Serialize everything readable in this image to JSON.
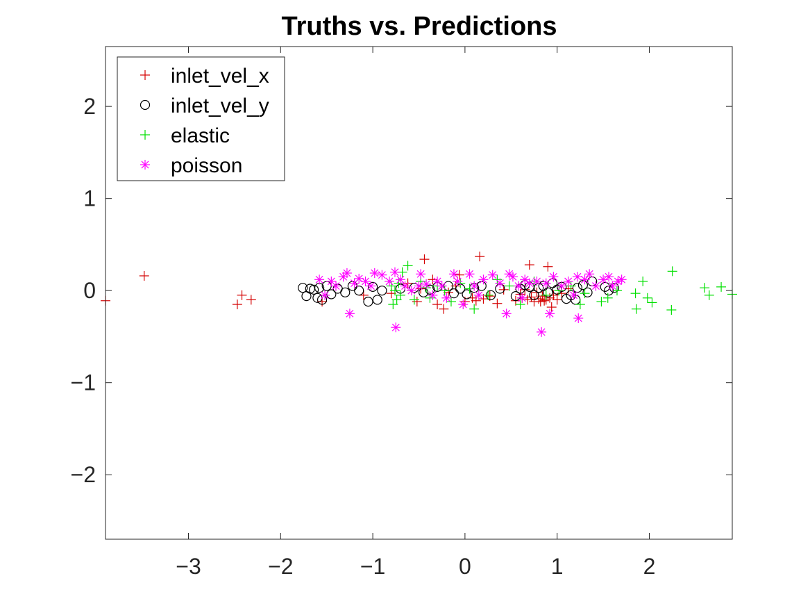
{
  "chart_data": {
    "type": "scatter",
    "title": "Truths vs. Predictions",
    "xlabel": "",
    "ylabel": "",
    "xlim": [
      -3.9,
      2.9
    ],
    "ylim": [
      -2.7,
      2.65
    ],
    "xticks": [
      -3,
      -2,
      -1,
      0,
      1,
      2
    ],
    "yticks": [
      -2,
      -1,
      0,
      1,
      2
    ],
    "grid": false,
    "legend_position": "top-left",
    "series": [
      {
        "name": "inlet_vel_x",
        "marker": "plus",
        "color": "#d40000",
        "points": [
          [
            -3.9,
            -0.11
          ],
          [
            -3.48,
            0.16
          ],
          [
            -2.47,
            -0.15
          ],
          [
            -2.42,
            -0.05
          ],
          [
            -2.32,
            -0.1
          ],
          [
            -1.55,
            -0.12
          ],
          [
            -1.1,
            -0.05
          ],
          [
            -0.8,
            -0.03
          ],
          [
            -0.62,
            0.08
          ],
          [
            -0.52,
            -0.12
          ],
          [
            -0.48,
            0.02
          ],
          [
            -0.44,
            0.34
          ],
          [
            -0.35,
            0.12
          ],
          [
            -0.3,
            -0.15
          ],
          [
            -0.23,
            -0.2
          ],
          [
            -0.18,
            -0.02
          ],
          [
            -0.1,
            0.05
          ],
          [
            -0.06,
            0.17
          ],
          [
            0.0,
            -0.12
          ],
          [
            0.08,
            -0.08
          ],
          [
            0.12,
            -0.11
          ],
          [
            0.16,
            0.37
          ],
          [
            0.2,
            -0.09
          ],
          [
            0.27,
            -0.06
          ],
          [
            0.35,
            -0.14
          ],
          [
            0.42,
            0.01
          ],
          [
            0.55,
            -0.11
          ],
          [
            0.6,
            -0.04
          ],
          [
            0.62,
            -0.08
          ],
          [
            0.65,
            0.01
          ],
          [
            0.68,
            -0.1
          ],
          [
            0.7,
            0.28
          ],
          [
            0.72,
            -0.07
          ],
          [
            0.75,
            -0.12
          ],
          [
            0.78,
            -0.02
          ],
          [
            0.8,
            -0.09
          ],
          [
            0.82,
            -0.12
          ],
          [
            0.84,
            -0.06
          ],
          [
            0.86,
            -0.11
          ],
          [
            0.88,
            -0.1
          ],
          [
            0.9,
            0.26
          ],
          [
            0.92,
            -0.08
          ],
          [
            0.94,
            -0.18
          ],
          [
            0.96,
            -0.05
          ],
          [
            1.0,
            -0.1
          ],
          [
            1.05,
            -0.03
          ],
          [
            1.12,
            0.02
          ]
        ]
      },
      {
        "name": "inlet_vel_y",
        "marker": "circle",
        "color": "#000000",
        "points": [
          [
            -1.76,
            0.03
          ],
          [
            -1.72,
            -0.06
          ],
          [
            -1.68,
            0.02
          ],
          [
            -1.64,
            0.01
          ],
          [
            -1.6,
            -0.08
          ],
          [
            -1.58,
            0.03
          ],
          [
            -1.55,
            -0.1
          ],
          [
            -1.5,
            0.05
          ],
          [
            -1.45,
            -0.04
          ],
          [
            -1.38,
            0.02
          ],
          [
            -1.3,
            -0.02
          ],
          [
            -1.22,
            0.05
          ],
          [
            -1.15,
            0.0
          ],
          [
            -1.05,
            -0.12
          ],
          [
            -1.0,
            0.04
          ],
          [
            -0.95,
            -0.1
          ],
          [
            -0.9,
            0.0
          ],
          [
            -0.7,
            0.02
          ],
          [
            -0.55,
            0.03
          ],
          [
            -0.45,
            -0.02
          ],
          [
            -0.38,
            0.01
          ],
          [
            -0.3,
            0.04
          ],
          [
            -0.18,
            0.05
          ],
          [
            -0.12,
            -0.03
          ],
          [
            -0.05,
            0.02
          ],
          [
            0.02,
            -0.04
          ],
          [
            0.1,
            0.03
          ],
          [
            0.18,
            0.05
          ],
          [
            0.28,
            -0.05
          ],
          [
            0.38,
            0.02
          ],
          [
            0.55,
            -0.06
          ],
          [
            0.6,
            0.02
          ],
          [
            0.65,
            0.06
          ],
          [
            0.7,
            0.04
          ],
          [
            0.75,
            -0.05
          ],
          [
            0.8,
            0.03
          ],
          [
            0.85,
            0.05
          ],
          [
            0.9,
            -0.02
          ],
          [
            0.95,
            0.08
          ],
          [
            1.0,
            0.01
          ],
          [
            1.05,
            0.04
          ],
          [
            1.1,
            -0.09
          ],
          [
            1.15,
            -0.05
          ],
          [
            1.2,
            -0.1
          ],
          [
            1.22,
            0.03
          ],
          [
            1.28,
            0.06
          ],
          [
            1.33,
            -0.02
          ],
          [
            1.38,
            0.1
          ],
          [
            1.52,
            0.04
          ],
          [
            1.56,
            0.0
          ],
          [
            1.62,
            0.03
          ]
        ]
      },
      {
        "name": "elastic",
        "marker": "plus",
        "color": "#00e000",
        "points": [
          [
            -0.8,
            0.05
          ],
          [
            -0.78,
            -0.15
          ],
          [
            -0.76,
            0.0
          ],
          [
            -0.74,
            -0.1
          ],
          [
            -0.72,
            0.08
          ],
          [
            -0.7,
            -0.05
          ],
          [
            -0.68,
            0.2
          ],
          [
            -0.62,
            0.27
          ],
          [
            -0.55,
            -0.1
          ],
          [
            -0.48,
            0.1
          ],
          [
            -0.42,
            0.03
          ],
          [
            -0.38,
            -0.08
          ],
          [
            -0.3,
            0.05
          ],
          [
            -0.22,
            0.0
          ],
          [
            -0.15,
            -0.12
          ],
          [
            -0.05,
            0.08
          ],
          [
            0.05,
            0.02
          ],
          [
            0.1,
            -0.2
          ],
          [
            0.25,
            -0.05
          ],
          [
            0.35,
            0.12
          ],
          [
            0.48,
            0.05
          ],
          [
            0.6,
            -0.15
          ],
          [
            0.75,
            0.1
          ],
          [
            0.88,
            -0.05
          ],
          [
            1.02,
            0.0
          ],
          [
            1.15,
            0.05
          ],
          [
            1.25,
            -0.15
          ],
          [
            1.3,
            -0.03
          ],
          [
            1.48,
            -0.12
          ],
          [
            1.55,
            -0.08
          ],
          [
            1.65,
            0.0
          ],
          [
            1.85,
            -0.03
          ],
          [
            1.86,
            -0.2
          ],
          [
            1.93,
            0.1
          ],
          [
            1.98,
            -0.08
          ],
          [
            2.03,
            -0.13
          ],
          [
            2.24,
            -0.21
          ],
          [
            2.25,
            0.21
          ],
          [
            2.6,
            0.03
          ],
          [
            2.65,
            -0.05
          ],
          [
            2.78,
            0.04
          ],
          [
            2.9,
            -0.04
          ]
        ]
      },
      {
        "name": "poisson",
        "marker": "asterisk",
        "color": "#ff00ff",
        "points": [
          [
            -1.58,
            0.12
          ],
          [
            -1.52,
            -0.05
          ],
          [
            -1.45,
            0.1
          ],
          [
            -1.4,
            0.05
          ],
          [
            -1.32,
            0.15
          ],
          [
            -1.28,
            0.19
          ],
          [
            -1.25,
            -0.25
          ],
          [
            -1.2,
            0.08
          ],
          [
            -1.15,
            0.13
          ],
          [
            -1.08,
            0.1
          ],
          [
            -1.02,
            0.05
          ],
          [
            -0.98,
            0.19
          ],
          [
            -0.9,
            0.17
          ],
          [
            -0.82,
            0.1
          ],
          [
            -0.76,
            0.2
          ],
          [
            -0.75,
            -0.4
          ],
          [
            -0.7,
            0.12
          ],
          [
            -0.65,
            0.05
          ],
          [
            -0.58,
            0.0
          ],
          [
            -0.5,
            0.05
          ],
          [
            -0.48,
            0.18
          ],
          [
            -0.42,
            0.07
          ],
          [
            -0.35,
            -0.05
          ],
          [
            -0.3,
            0.1
          ],
          [
            -0.25,
            0.05
          ],
          [
            -0.2,
            -0.08
          ],
          [
            -0.12,
            0.18
          ],
          [
            -0.08,
            0.1
          ],
          [
            -0.02,
            -0.15
          ],
          [
            0.05,
            0.18
          ],
          [
            0.1,
            0.05
          ],
          [
            0.15,
            -0.05
          ],
          [
            0.2,
            0.12
          ],
          [
            0.3,
            0.17
          ],
          [
            0.38,
            0.08
          ],
          [
            0.45,
            -0.25
          ],
          [
            0.48,
            0.18
          ],
          [
            0.52,
            0.15
          ],
          [
            0.58,
            0.05
          ],
          [
            0.62,
            -0.08
          ],
          [
            0.65,
            0.12
          ],
          [
            0.7,
            0.08
          ],
          [
            0.78,
            0.1
          ],
          [
            0.83,
            -0.45
          ],
          [
            0.88,
            0.08
          ],
          [
            0.92,
            -0.25
          ],
          [
            0.96,
            0.15
          ],
          [
            1.05,
            0.05
          ],
          [
            1.12,
            0.1
          ],
          [
            1.18,
            -0.05
          ],
          [
            1.22,
            0.15
          ],
          [
            1.23,
            -0.3
          ],
          [
            1.3,
            0.12
          ],
          [
            1.35,
            0.18
          ],
          [
            1.42,
            0.05
          ],
          [
            1.5,
            0.12
          ],
          [
            1.56,
            0.15
          ],
          [
            1.6,
            0.05
          ],
          [
            1.66,
            0.1
          ],
          [
            1.7,
            0.12
          ]
        ]
      }
    ]
  }
}
